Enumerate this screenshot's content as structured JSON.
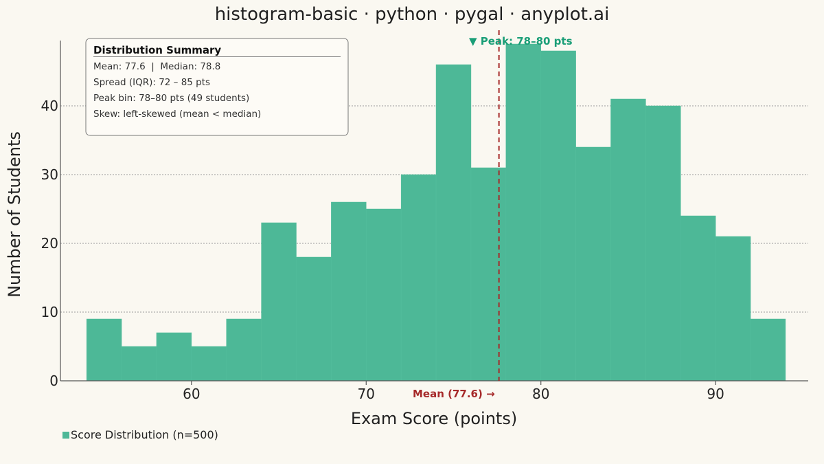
{
  "chart_data": {
    "type": "bar",
    "title": "histogram-basic · python · pygal · anyplot.ai",
    "xlabel": "Exam Score (points)",
    "ylabel": "Number of Students",
    "bin_edges": [
      54,
      56,
      58,
      60,
      62,
      64,
      66,
      68,
      70,
      72,
      74,
      76,
      78,
      80,
      82,
      84,
      86,
      88,
      90,
      92,
      94
    ],
    "values": [
      9,
      5,
      7,
      5,
      9,
      23,
      18,
      26,
      25,
      30,
      46,
      31,
      49,
      48,
      34,
      41,
      40,
      24,
      21,
      9
    ],
    "xlim": [
      52.5,
      95.3
    ],
    "ylim": [
      0,
      49.5
    ],
    "x_ticks": [
      60,
      70,
      80,
      90
    ],
    "y_ticks": [
      0,
      10,
      20,
      30,
      40
    ],
    "grid": "horizontal",
    "legend": {
      "placement": "bottom-left",
      "entries": [
        "Score Distribution (n=500)"
      ]
    },
    "series_color": "#4DB897",
    "mean": {
      "value": 77.6,
      "label": "Mean (77.6) →",
      "color": "#A62A2A"
    },
    "peak": {
      "label": "▼ Peak: 78–80 pts",
      "color": "#1A9E77"
    },
    "summary": {
      "title": "Distribution Summary",
      "lines": [
        "Mean: 77.6  |  Median: 78.8",
        "Spread (IQR): 72 – 85 pts",
        "Peak bin: 78–80 pts (49 students)",
        "Skew: left-skewed (mean < median)"
      ]
    }
  }
}
